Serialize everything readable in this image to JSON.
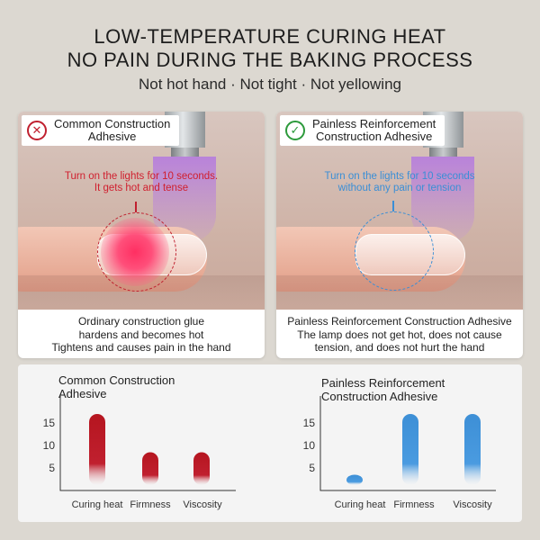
{
  "header": {
    "title_line1": "LOW-TEMPERATURE CURING HEAT",
    "title_line2": "NO PAIN DURING THE BAKING PROCESS",
    "subtitle": "Not hot hand · Not tight · Not yellowing"
  },
  "cards": [
    {
      "badge": "Common Construction\nAdhesive",
      "icon": "cross-icon",
      "photo_note": "Turn on the lights for 10 seconds.\nIt gets hot and tense",
      "note_color": "#d0202f",
      "description": "Ordinary construction glue\nhardens and becomes hot\nTightens and causes pain in the hand"
    },
    {
      "badge": "Painless Reinforcement\nConstruction Adhesive",
      "icon": "check-icon",
      "photo_note": "Turn on the lights for 10 seconds\nwithout any pain or tension",
      "note_color": "#3a8ed6",
      "description": "Painless Reinforcement Construction Adhesive\nThe lamp does not get hot, does not cause\ntension, and does not hurt the hand"
    }
  ],
  "chart_data": [
    {
      "type": "bar",
      "title": "Common Construction\nAdhesive",
      "categories": [
        "Curing heat",
        "Firmness",
        "Viscosity"
      ],
      "values": [
        17,
        8.5,
        8.5
      ],
      "yticks": [
        5,
        10,
        15
      ],
      "ylim": [
        0,
        20
      ],
      "color": "#b5151f",
      "grid": false
    },
    {
      "type": "bar",
      "title": "Painless Reinforcement\nConstruction Adhesive",
      "categories": [
        "Curing heat",
        "Firmness",
        "Viscosity"
      ],
      "values": [
        3.5,
        17,
        17
      ],
      "yticks": [
        5,
        10,
        15
      ],
      "ylim": [
        0,
        20
      ],
      "color": "#3d8fd6",
      "grid": false
    }
  ]
}
